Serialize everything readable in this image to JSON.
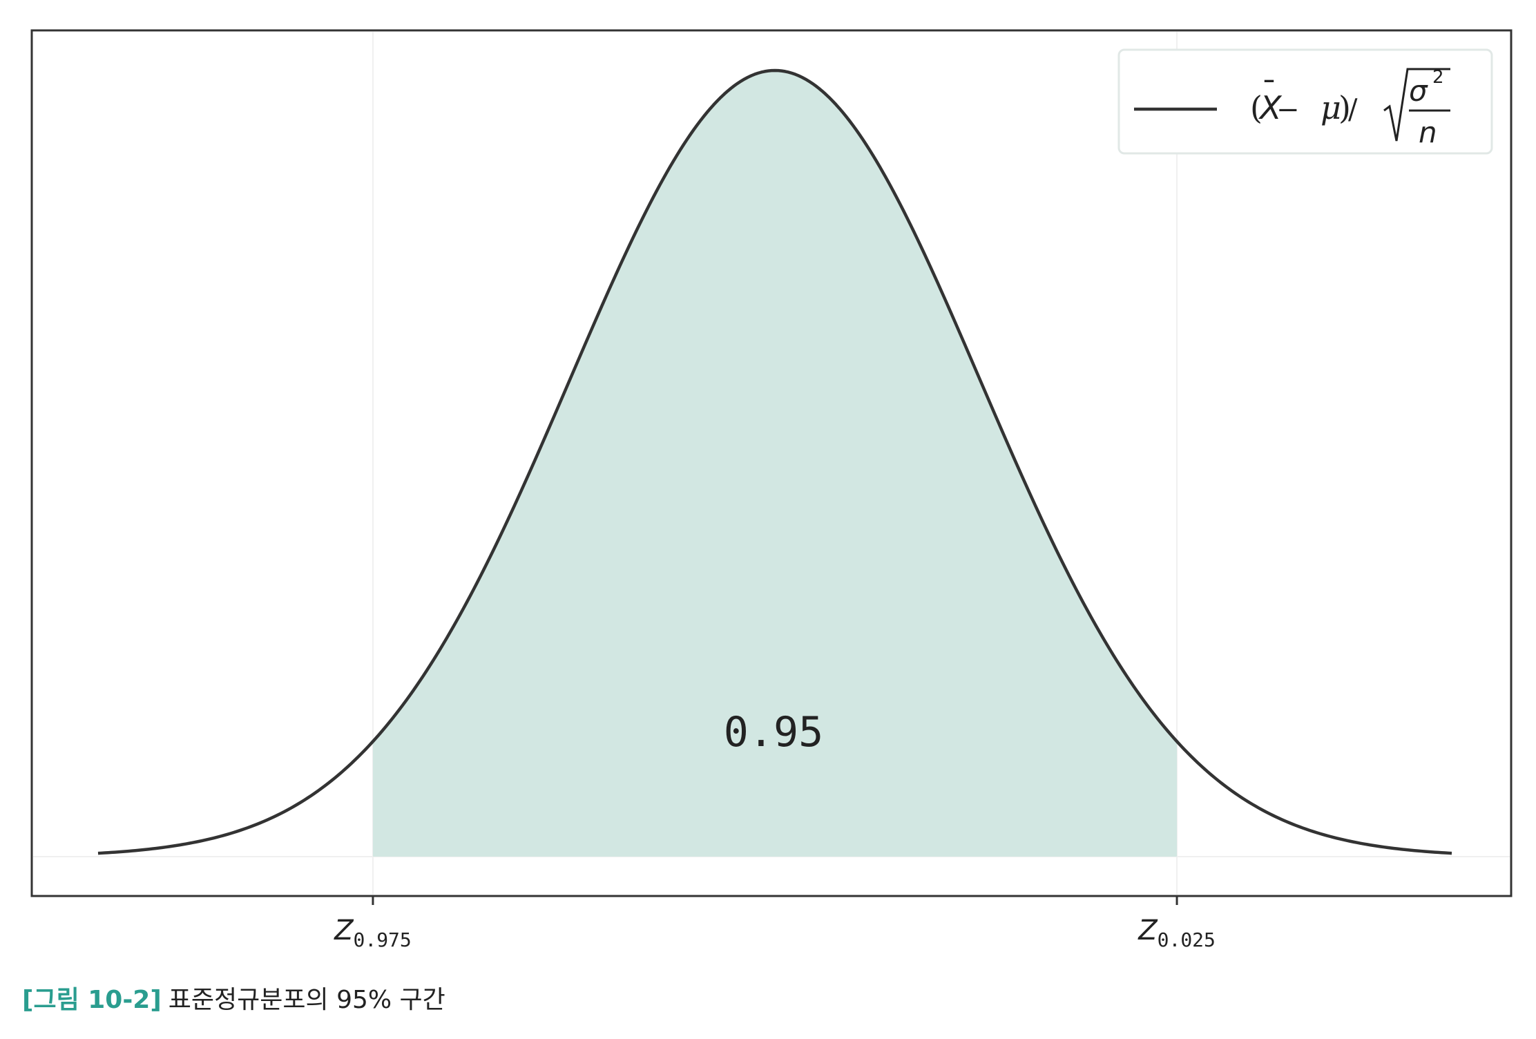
{
  "chart_data": {
    "type": "area",
    "curve": "standard normal density",
    "x_domain": [
      -3.3,
      3.3
    ],
    "y_domain": [
      0,
      0.4
    ],
    "shaded_interval": [
      -1.96,
      1.96
    ],
    "area_label": "0.95",
    "tick_positions": [
      -1.96,
      1.96
    ],
    "ticks": [
      {
        "main": "Z",
        "sub": "0.975"
      },
      {
        "main": "Z",
        "sub": "0.025"
      }
    ],
    "legend": {
      "placement": "top-right",
      "formula": "(X̄ − μ) / √(σ²/n)",
      "parts": {
        "open": "(",
        "xbar": "X",
        "bar": "¯",
        "minus": " − ",
        "mu": "μ",
        "close": ")",
        "slash": " /",
        "sigma": "σ",
        "sq": "2",
        "n": "n"
      }
    },
    "grid": true,
    "colors": {
      "curve": "#333333",
      "fill": "#d2e7e2",
      "frame": "#333333",
      "grid": "#f0f0f0"
    }
  },
  "caption": {
    "label": "[그림 10-2]",
    "text": "표준정규분포의 95% 구간"
  }
}
